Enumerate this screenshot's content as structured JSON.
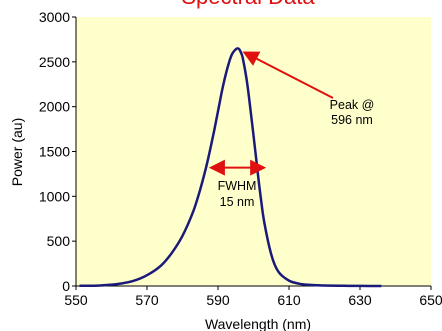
{
  "chart_data": {
    "type": "line",
    "title": "Spectral Data",
    "xlabel": "Wavelength (nm)",
    "ylabel": "Power (au)",
    "xlim": [
      550,
      650
    ],
    "ylim": [
      0,
      3000
    ],
    "x_ticks": [
      "550",
      "570",
      "590",
      "610",
      "630",
      "650"
    ],
    "y_ticks": [
      "0",
      "500",
      "1000",
      "1500",
      "2000",
      "2500",
      "3000"
    ],
    "grid": false,
    "plot_background": "#ffffcc",
    "line_color": "#1a1a7a",
    "arrow_color": "#e01010",
    "series": [
      {
        "x": [
          551,
          556,
          561,
          566,
          570,
          574,
          577,
          580,
          583,
          585,
          587,
          589,
          590,
          591,
          592,
          593,
          594,
          595,
          595.5,
          596,
          596.5,
          597,
          598,
          599,
          600,
          601,
          602,
          603,
          605,
          607,
          610,
          613,
          616,
          620,
          625,
          630,
          636
        ],
        "values": [
          2,
          5,
          18,
          55,
          120,
          230,
          370,
          560,
          830,
          1080,
          1380,
          1750,
          1950,
          2150,
          2330,
          2480,
          2590,
          2640,
          2650,
          2640,
          2600,
          2540,
          2320,
          2020,
          1680,
          1330,
          1000,
          720,
          350,
          160,
          60,
          25,
          12,
          6,
          3,
          1,
          0
        ]
      }
    ],
    "annotations": [
      {
        "id": "peak",
        "lines": [
          "Peak @",
          "596 nm"
        ],
        "target": [
          596,
          2650
        ]
      },
      {
        "id": "fwhm",
        "lines": [
          "FWHM",
          "15 nm"
        ],
        "span": [
          588,
          603
        ],
        "y": 1320
      }
    ]
  }
}
